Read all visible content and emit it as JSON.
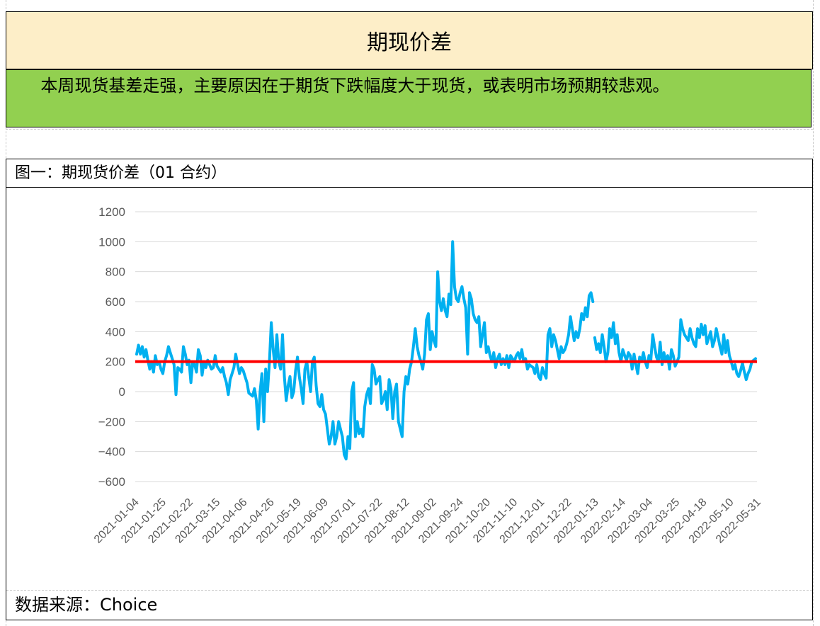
{
  "header": {
    "title": "期现价差"
  },
  "summary": {
    "text": "本周现货基差走强，主要原因在于期货下跌幅度大于现货，或表明市场预期较悲观。"
  },
  "figure": {
    "title": "图一：期现货价差（01 合约）"
  },
  "footer": {
    "source": "数据来源：Choice"
  },
  "colors": {
    "series": "#00b0f0",
    "reference": "#ff0000",
    "grid": "#d9d9d9",
    "title_bg": "#fdeec8",
    "summary_bg": "#92d050"
  },
  "chart_data": {
    "type": "line",
    "title": "",
    "xlabel": "",
    "ylabel": "",
    "ylim": [
      -600,
      1200
    ],
    "yticks": [
      1200,
      1000,
      800,
      600,
      400,
      200,
      0,
      -200,
      -400,
      -600
    ],
    "ytick_labels": [
      "1200",
      "1000",
      "800",
      "600",
      "400",
      "200",
      "0",
      "−200",
      "−400",
      "−600"
    ],
    "grid": "horizontal",
    "legend": "none",
    "x_tick_labels": [
      "2021-01-04",
      "2021-01-25",
      "2021-02-22",
      "2021-03-15",
      "2021-04-06",
      "2021-04-26",
      "2021-05-19",
      "2021-06-09",
      "2021-07-01",
      "2021-07-22",
      "2021-08-12",
      "2021-09-02",
      "2021-09-24",
      "2021-10-20",
      "2021-11-10",
      "2021-12-01",
      "2021-12-22",
      "2022-01-13",
      "2022-02-14",
      "2022-03-04",
      "2022-03-25",
      "2022-04-18",
      "2022-05-10",
      "2022-05-31"
    ],
    "reference_line": 200,
    "series": [
      {
        "values": [
          250,
          310,
          250,
          300,
          230,
          280,
          210,
          150,
          200,
          130,
          240,
          180,
          200,
          150,
          120,
          200,
          240,
          300,
          260,
          220,
          180,
          -20,
          160,
          150,
          130,
          300,
          250,
          180,
          210,
          60,
          200,
          180,
          130,
          280,
          240,
          110,
          200,
          160,
          210,
          180,
          150,
          160,
          240,
          170,
          150,
          130,
          160,
          100,
          60,
          -20,
          80,
          120,
          160,
          250,
          180,
          120,
          160,
          140,
          100,
          60,
          -10,
          -20,
          -30,
          20,
          -60,
          -250,
          0,
          120,
          -200,
          150,
          0,
          200,
          460,
          280,
          160,
          380,
          200,
          150,
          380,
          100,
          -60,
          40,
          100,
          -40,
          0,
          140,
          230,
          100,
          20,
          -80,
          150,
          200,
          100,
          0,
          200,
          230,
          40,
          -80,
          -100,
          -20,
          -120,
          -150,
          -250,
          -350,
          -300,
          -200,
          -350,
          -300,
          -200,
          -250,
          -300,
          -420,
          -450,
          -300,
          -380,
          0,
          60,
          -300,
          -200,
          -280,
          -250,
          -300,
          -100,
          -20,
          20,
          -80,
          180,
          150,
          50,
          80,
          100,
          -80,
          -50,
          0,
          -120,
          80,
          20,
          -180,
          0,
          50,
          -200,
          -250,
          -300,
          0,
          100,
          50,
          150,
          200,
          300,
          420,
          300,
          240,
          200,
          150,
          250,
          480,
          520,
          280,
          400,
          340,
          300,
          800,
          600,
          540,
          620,
          540,
          500,
          650,
          580,
          1000,
          700,
          620,
          600,
          660,
          700,
          620,
          560,
          250,
          660,
          620,
          520,
          480,
          460,
          500,
          300,
          380,
          460,
          260,
          300,
          240,
          200,
          260,
          160,
          220,
          250,
          180,
          220,
          180,
          240,
          160,
          240,
          220,
          200,
          240,
          260,
          220,
          280,
          200,
          220,
          150,
          180,
          170,
          160,
          120,
          180,
          100,
          80,
          160,
          120,
          90,
          380,
          420,
          300,
          380,
          340,
          280,
          220,
          300,
          260,
          280,
          320,
          380,
          500,
          420,
          340,
          400,
          360,
          420,
          520,
          480,
          560,
          500,
          640,
          660,
          600
        ]
      },
      {
        "values": [
          360,
          280,
          320,
          260,
          380,
          300,
          200,
          260,
          420,
          360,
          460,
          320,
          380,
          260,
          200,
          280,
          240,
          210,
          260,
          240,
          150,
          250,
          180,
          120,
          230,
          200,
          260,
          200,
          160,
          240,
          210,
          380,
          300,
          230,
          200,
          330,
          180,
          260,
          200,
          240,
          150,
          280,
          240,
          170,
          200,
          230,
          480,
          420,
          380,
          360,
          340,
          420,
          360,
          320,
          300,
          420,
          360,
          450,
          380,
          440,
          320,
          360,
          400,
          300,
          340,
          420,
          360,
          300,
          250,
          380,
          260,
          340,
          240,
          200,
          150,
          180,
          120,
          100,
          140,
          190,
          130,
          80,
          120,
          150,
          200,
          210,
          220
        ]
      }
    ]
  }
}
